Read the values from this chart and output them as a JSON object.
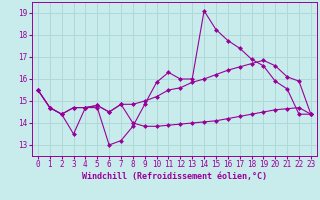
{
  "xlabel": "Windchill (Refroidissement éolien,°C)",
  "background_color": "#c8ecec",
  "grid_color": "#b0d8d8",
  "line_color": "#990099",
  "x_ticks": [
    0,
    1,
    2,
    3,
    4,
    5,
    6,
    7,
    8,
    9,
    10,
    11,
    12,
    13,
    14,
    15,
    16,
    17,
    18,
    19,
    20,
    21,
    22,
    23
  ],
  "y_ticks": [
    13,
    14,
    15,
    16,
    17,
    18,
    19
  ],
  "xlim": [
    -0.5,
    23.5
  ],
  "ylim": [
    12.5,
    19.5
  ],
  "line1_x": [
    0,
    1,
    2,
    3,
    4,
    5,
    6,
    7,
    8,
    9,
    10,
    11,
    12,
    13,
    14,
    15,
    16,
    17,
    18,
    19,
    20,
    21,
    22,
    23
  ],
  "line1_y": [
    15.5,
    14.7,
    14.4,
    13.5,
    14.7,
    14.7,
    13.0,
    13.2,
    13.85,
    14.85,
    15.85,
    16.3,
    16.0,
    16.0,
    19.1,
    18.25,
    17.75,
    17.4,
    16.9,
    16.6,
    15.9,
    15.55,
    14.4,
    14.4
  ],
  "line2_x": [
    0,
    1,
    2,
    3,
    4,
    5,
    6,
    7,
    8,
    9,
    10,
    11,
    12,
    13,
    14,
    15,
    16,
    17,
    18,
    19,
    20,
    21,
    22,
    23
  ],
  "line2_y": [
    15.5,
    14.7,
    14.4,
    14.7,
    14.7,
    14.8,
    14.5,
    14.85,
    14.85,
    15.0,
    15.2,
    15.5,
    15.6,
    15.85,
    16.0,
    16.2,
    16.4,
    16.55,
    16.7,
    16.85,
    16.6,
    16.1,
    15.9,
    14.4
  ],
  "line3_x": [
    0,
    1,
    2,
    3,
    4,
    5,
    6,
    7,
    8,
    9,
    10,
    11,
    12,
    13,
    14,
    15,
    16,
    17,
    18,
    19,
    20,
    21,
    22,
    23
  ],
  "line3_y": [
    15.5,
    14.7,
    14.4,
    14.7,
    14.7,
    14.8,
    14.5,
    14.85,
    14.0,
    13.85,
    13.85,
    13.9,
    13.95,
    14.0,
    14.05,
    14.1,
    14.2,
    14.3,
    14.4,
    14.5,
    14.6,
    14.65,
    14.7,
    14.4
  ],
  "marker": "D",
  "marker_size": 2.5,
  "line_width": 0.8,
  "tick_fontsize": 5.5,
  "xlabel_fontsize": 6.0
}
